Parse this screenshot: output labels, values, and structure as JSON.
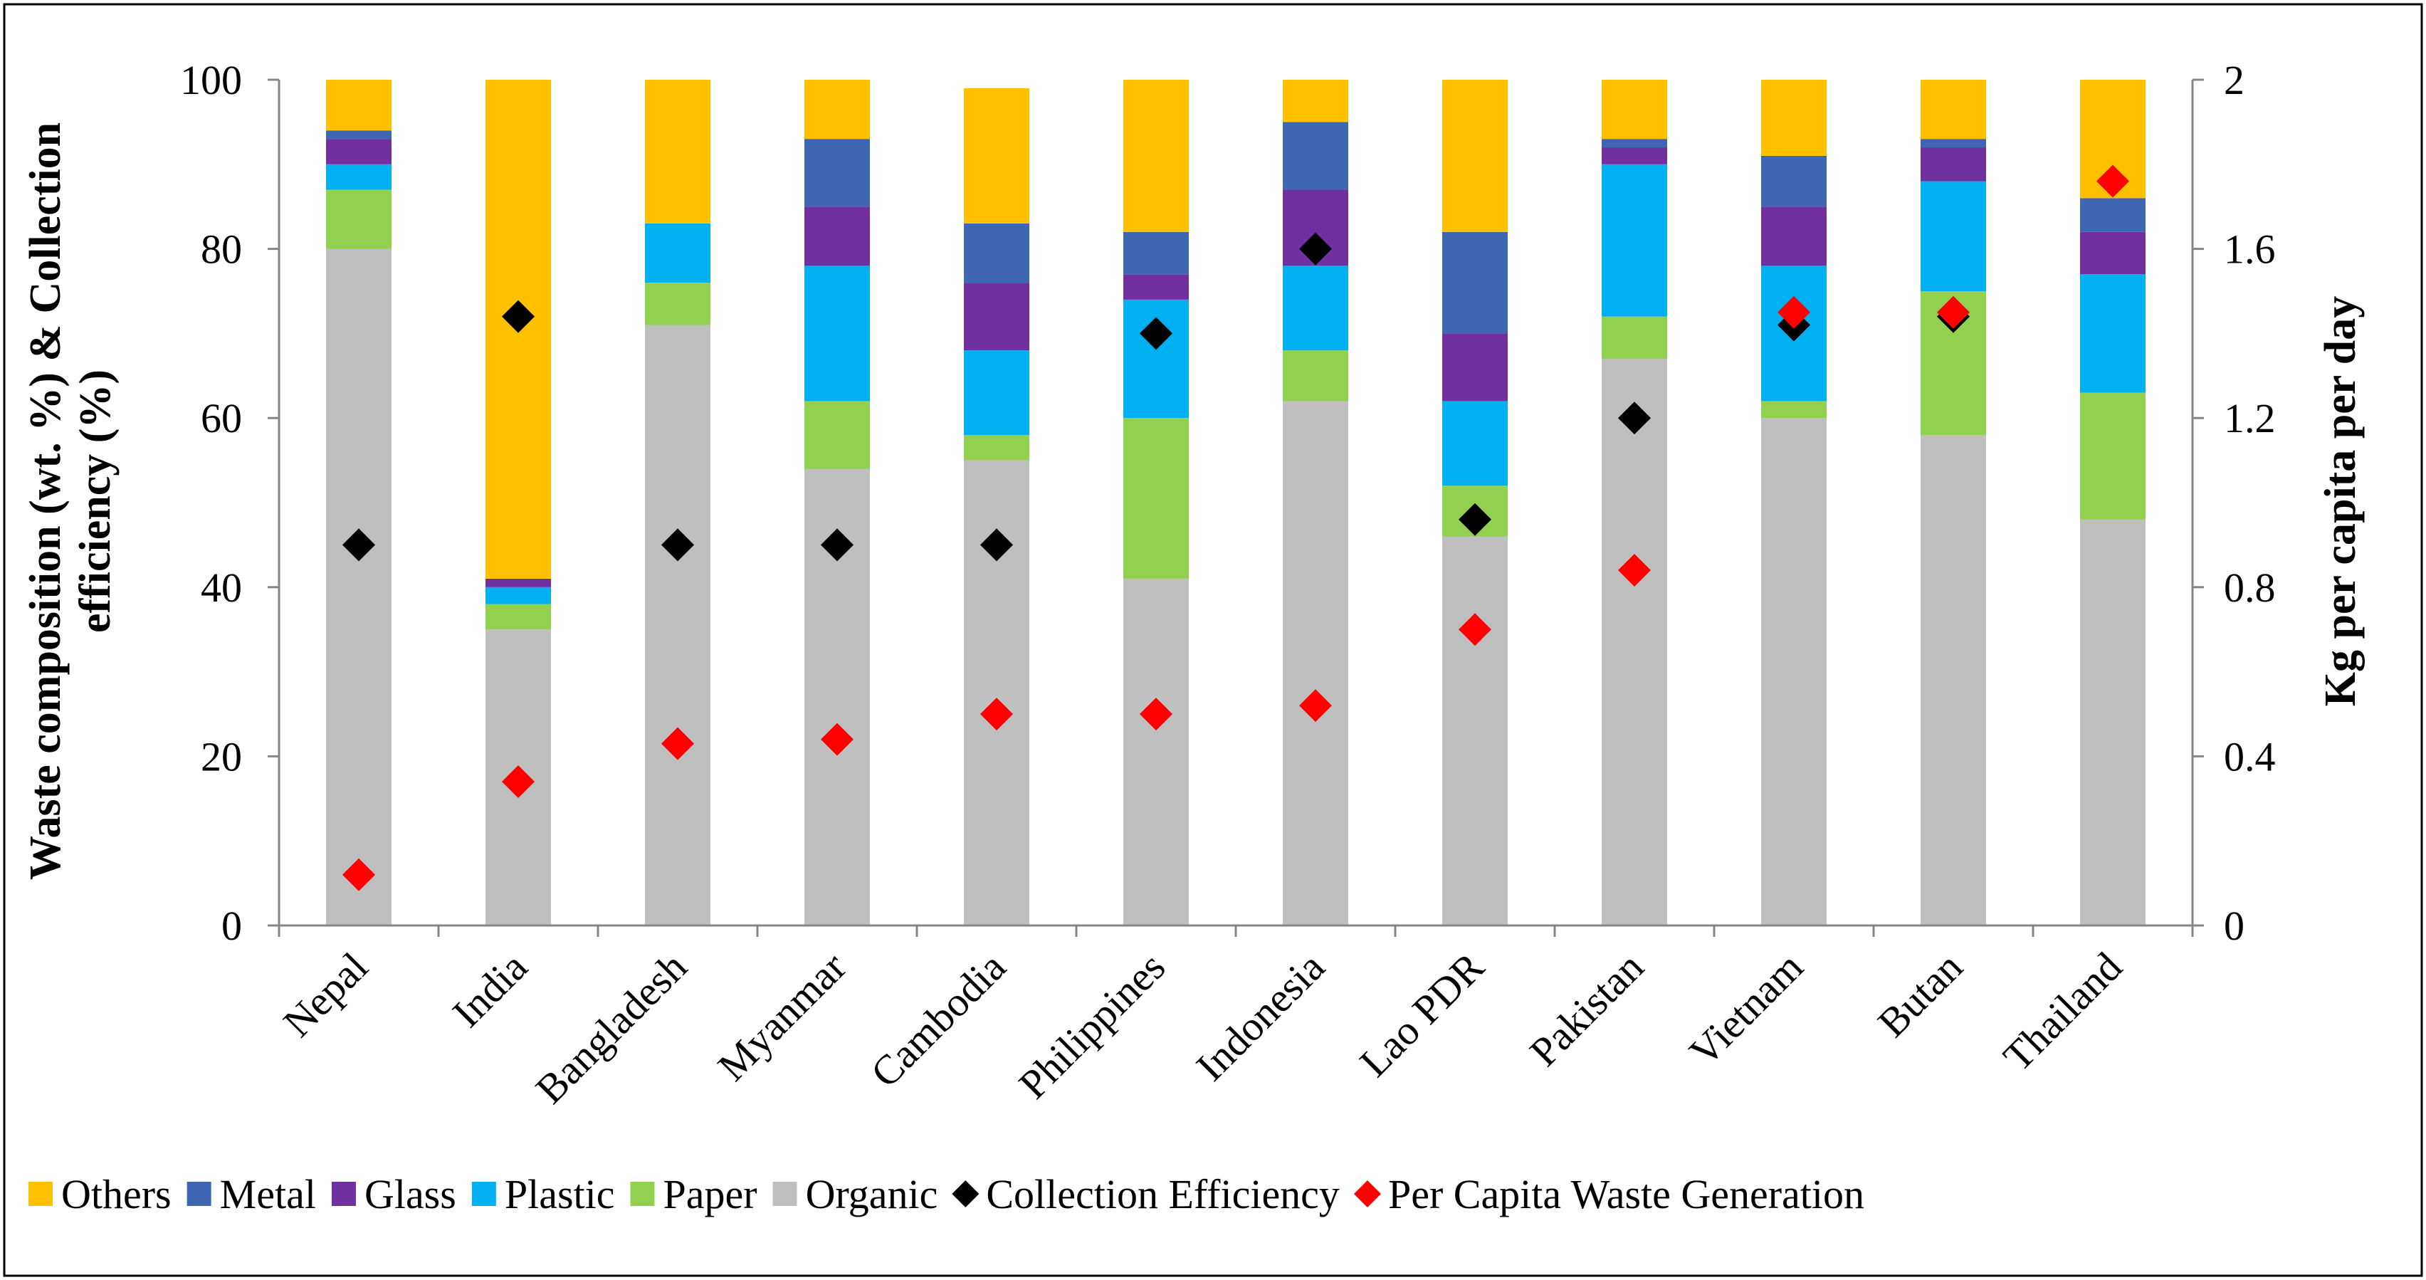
{
  "chart_data": {
    "type": "bar",
    "stacked": true,
    "categories": [
      "Nepal",
      "India",
      "Bangladesh",
      "Myanmar",
      "Cambodia",
      "Philippines",
      "Indonesia",
      "Lao PDR",
      "Pakistan",
      "Vietnam",
      "Butan",
      "Thailand"
    ],
    "series": [
      {
        "name": "Organic",
        "color": "#bfbfbf",
        "values": [
          80,
          35,
          71,
          54,
          55,
          41,
          62,
          46,
          67,
          60,
          58,
          48
        ]
      },
      {
        "name": "Paper",
        "color": "#92d050",
        "values": [
          7,
          3,
          5,
          8,
          3,
          19,
          6,
          6,
          5,
          2,
          17,
          15
        ]
      },
      {
        "name": "Plastic",
        "color": "#00b0f0",
        "values": [
          3,
          2,
          7,
          16,
          10,
          14,
          10,
          10,
          18,
          16,
          13,
          14
        ]
      },
      {
        "name": "Glass",
        "color": "#7030a0",
        "values": [
          3,
          1,
          0,
          7,
          8,
          3,
          9,
          8,
          2,
          7,
          4,
          5
        ]
      },
      {
        "name": "Metal",
        "color": "#3f67b1",
        "values": [
          1,
          0,
          0,
          8,
          7,
          5,
          8,
          12,
          1,
          6,
          1,
          4
        ]
      },
      {
        "name": "Others",
        "color": "#ffc000",
        "values": [
          6,
          59,
          17,
          7,
          16,
          18,
          5,
          18,
          7,
          9,
          7,
          14
        ]
      }
    ],
    "markers": [
      {
        "name": "Collection Efficiency",
        "color": "#000000",
        "axis": "left",
        "values": [
          45,
          72,
          45,
          45,
          45,
          70,
          80,
          48,
          60,
          71,
          72,
          null
        ]
      },
      {
        "name": "Per Capita Waste Generation",
        "color": "#ff0000",
        "axis": "right",
        "values": [
          0.12,
          0.34,
          0.43,
          0.44,
          0.5,
          0.5,
          0.52,
          0.7,
          0.84,
          1.45,
          1.45,
          1.76
        ]
      }
    ],
    "legend_order": [
      "Others",
      "Metal",
      "Glass",
      "Plastic",
      "Paper",
      "Organic",
      "Collection Efficiency",
      "Per Capita Waste Generation"
    ],
    "legend_position": "bottom",
    "y_left": {
      "label_line1": "Waste composition (wt. %) & Collection",
      "label_line2": "efficiency (%)",
      "range": [
        0,
        100
      ],
      "ticks": [
        "0",
        "20",
        "40",
        "60",
        "80",
        "100"
      ]
    },
    "y_right": {
      "label": "Kg per capita per day",
      "range": [
        0,
        2
      ],
      "ticks": [
        "0",
        "0.4",
        "0.8",
        "1.2",
        "1.6",
        "2"
      ]
    },
    "grid": false
  }
}
